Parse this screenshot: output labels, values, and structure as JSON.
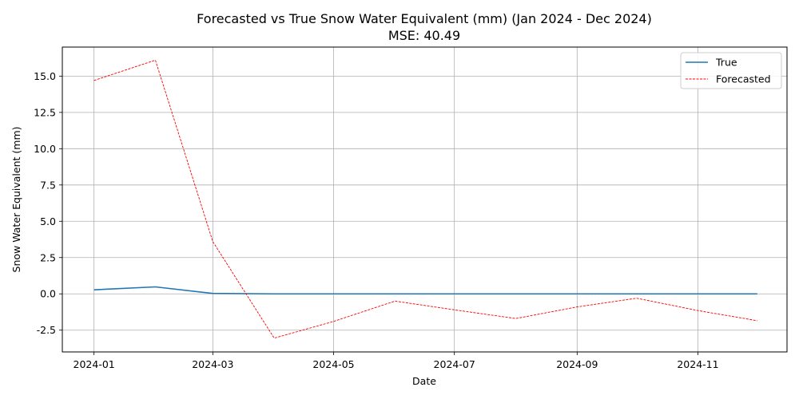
{
  "chart_data": {
    "type": "line",
    "title": "Forecasted vs True Snow Water Equivalent (mm) (Jan 2024 - Dec 2024)",
    "subtitle": "MSE: 40.49",
    "xlabel": "Date",
    "ylabel": "Snow Water Equivalent (mm)",
    "x": [
      "2024-01-01",
      "2024-02-01",
      "2024-03-01",
      "2024-04-01",
      "2024-05-01",
      "2024-06-01",
      "2024-07-01",
      "2024-08-01",
      "2024-09-01",
      "2024-10-01",
      "2024-11-01",
      "2024-12-01"
    ],
    "x_ticks": [
      "2024-01",
      "2024-03",
      "2024-05",
      "2024-07",
      "2024-09",
      "2024-11"
    ],
    "y_ticks": [
      "-2.5",
      "0.0",
      "2.5",
      "5.0",
      "7.5",
      "10.0",
      "12.5",
      "15.0"
    ],
    "ylim": [
      -4.0,
      17.0
    ],
    "xlim": [
      "2023-12-16",
      "2024-12-16"
    ],
    "grid": true,
    "legend_position": "top-right",
    "series": [
      {
        "name": "True",
        "color": "#1f77b4",
        "style": "solid",
        "values": [
          0.28,
          0.48,
          0.03,
          0.0,
          0.0,
          0.0,
          0.0,
          0.0,
          0.0,
          0.0,
          0.0,
          0.0
        ]
      },
      {
        "name": "Forecasted",
        "color": "#ff0000",
        "style": "dashed",
        "values": [
          14.7,
          16.1,
          3.6,
          -3.05,
          -1.9,
          -0.5,
          -1.1,
          -1.7,
          -0.9,
          -0.3,
          -1.15,
          -1.85
        ]
      }
    ]
  }
}
